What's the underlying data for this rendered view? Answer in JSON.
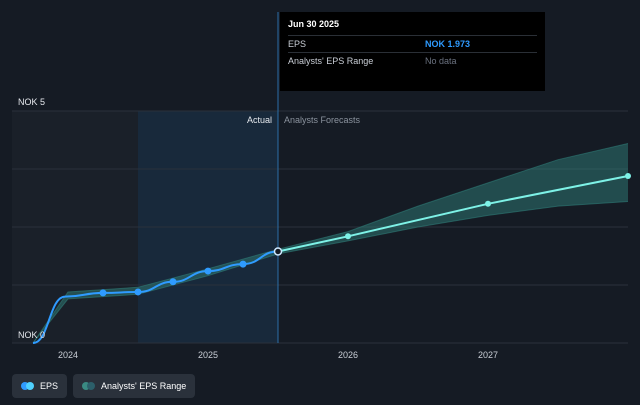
{
  "chart_data": {
    "type": "line",
    "currency": "NOK",
    "y_ticks": [
      {
        "value": 5,
        "label": "NOK 5"
      },
      {
        "value": 0,
        "label": "NOK 0"
      }
    ],
    "ylim": [
      0,
      5
    ],
    "x_ticks": [
      {
        "value": 2024.0,
        "label": "2024"
      },
      {
        "value": 2025.0,
        "label": "2025"
      },
      {
        "value": 2026.0,
        "label": "2026"
      },
      {
        "value": 2027.0,
        "label": "2027"
      }
    ],
    "xlim": [
      2023.6,
      2028.0
    ],
    "divider_x": 2025.5,
    "actual_label": "Actual",
    "forecast_label": "Analysts Forecasts",
    "series": [
      {
        "name": "EPS",
        "color": "#2f9bff",
        "x": [
          2023.75,
          2023.98,
          2024.25,
          2024.5,
          2024.75,
          2025.0,
          2025.25,
          2025.5
        ],
        "y": [
          0.0,
          1.0,
          1.08,
          1.1,
          1.32,
          1.55,
          1.7,
          1.973
        ],
        "markers_x": [
          2024.0,
          2024.25,
          2024.5,
          2024.75,
          2025.0,
          2025.25,
          2025.5
        ]
      },
      {
        "name": "EPS Forecast",
        "color": "#7ef2e7",
        "x": [
          2025.5,
          2026.0,
          2027.0,
          2028.0
        ],
        "y": [
          1.973,
          2.3,
          3.0,
          3.6
        ]
      }
    ],
    "range_series": {
      "name": "Analysts' EPS Range",
      "color": "#3a8a82",
      "x": [
        2023.75,
        2024.0,
        2024.5,
        2025.0,
        2025.5,
        2026.0,
        2026.5,
        2027.0,
        2027.5,
        2028.0
      ],
      "low": [
        0.0,
        0.95,
        1.05,
        1.45,
        1.92,
        2.2,
        2.5,
        2.75,
        2.95,
        3.05
      ],
      "high": [
        0.0,
        1.1,
        1.2,
        1.6,
        2.02,
        2.4,
        2.95,
        3.45,
        3.95,
        4.3
      ]
    }
  },
  "tooltip": {
    "date": "Jun 30 2025",
    "rows": [
      {
        "label": "EPS",
        "value": "NOK 1.973"
      },
      {
        "label": "Analysts' EPS Range",
        "value": "No data"
      }
    ]
  },
  "legend": [
    {
      "label": "EPS",
      "colors": [
        "#2f9bff",
        "#4fd1ff"
      ]
    },
    {
      "label": "Analysts' EPS Range",
      "colors": [
        "#3a8a82",
        "#2c5f6a"
      ]
    }
  ]
}
